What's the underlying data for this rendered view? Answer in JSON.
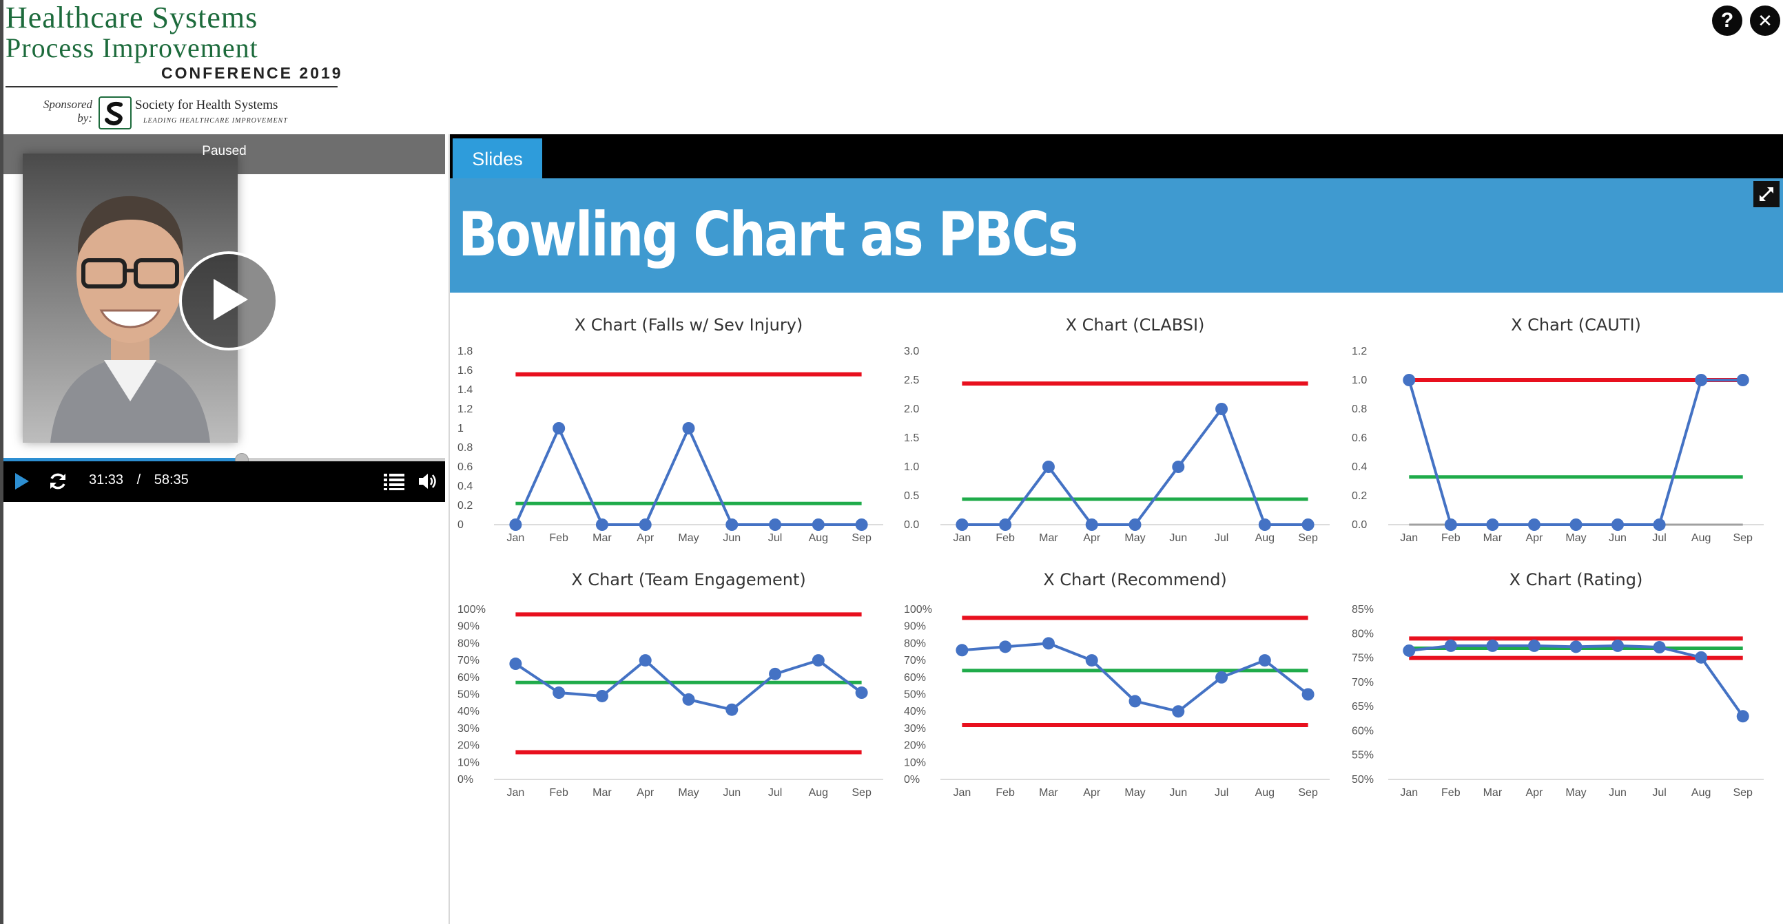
{
  "logo": {
    "line1": "Healthcare Systems",
    "line2": "Process Improvement",
    "line3": "CONFERENCE 2019",
    "sponsored": "Sponsored by:",
    "society": "Society for Health Systems",
    "tagline": "LEADING HEALTHCARE IMPROVEMENT"
  },
  "top_icons": {
    "help": "?",
    "close": "✕"
  },
  "video": {
    "status": "Paused",
    "current_time": "31:33",
    "separator": "/",
    "duration": "58:35",
    "progress_fraction": 0.539
  },
  "slides": {
    "tab_label": "Slides",
    "title": "Bowling Chart as PBCs"
  },
  "colors": {
    "series": "#4472c4",
    "limit": "#e8101e",
    "center": "#1fab4a",
    "banner": "#3f9ad0",
    "tab": "#2e9cdb"
  },
  "chart_data": [
    {
      "type": "line",
      "title": "X Chart (Falls w/ Sev Injury)",
      "x": [
        "Jan",
        "Feb",
        "Mar",
        "Apr",
        "May",
        "Jun",
        "Jul",
        "Aug",
        "Sep"
      ],
      "ylim": [
        0,
        1.8
      ],
      "yticks": [
        "0",
        "0.2",
        "0.4",
        "0.6",
        "0.8",
        "1",
        "1.2",
        "1.4",
        "1.6",
        "1.8"
      ],
      "values": [
        0,
        1,
        0,
        0,
        1,
        0,
        0,
        0,
        0
      ],
      "ucl": 1.56,
      "center": 0.22,
      "lcl": null
    },
    {
      "type": "line",
      "title": "X Chart (CLABSI)",
      "x": [
        "Jan",
        "Feb",
        "Mar",
        "Apr",
        "May",
        "Jun",
        "Jul",
        "Aug",
        "Sep"
      ],
      "ylim": [
        0,
        3
      ],
      "yticks": [
        "0.0",
        "0.5",
        "1.0",
        "1.5",
        "2.0",
        "2.5",
        "3.0"
      ],
      "values": [
        0,
        0,
        1,
        0,
        0,
        1,
        2,
        0,
        0
      ],
      "ucl": 2.44,
      "center": 0.44,
      "lcl": null
    },
    {
      "type": "line",
      "title": "X Chart (CAUTI)",
      "x": [
        "Jan",
        "Feb",
        "Mar",
        "Apr",
        "May",
        "Jun",
        "Jul",
        "Aug",
        "Sep"
      ],
      "ylim": [
        0,
        1.2
      ],
      "yticks": [
        "0.0",
        "0.2",
        "0.4",
        "0.6",
        "0.8",
        "1.0",
        "1.2"
      ],
      "values": [
        1,
        0,
        0,
        0,
        0,
        0,
        0,
        1,
        1
      ],
      "ucl": 1.0,
      "center": 0.33,
      "lcl": 0
    },
    {
      "type": "line",
      "title": "X Chart (Team Engagement)",
      "x": [
        "Jan",
        "Feb",
        "Mar",
        "Apr",
        "May",
        "Jun",
        "Jul",
        "Aug",
        "Sep"
      ],
      "ylim": [
        0,
        100
      ],
      "yticks": [
        "0%",
        "10%",
        "20%",
        "30%",
        "40%",
        "50%",
        "60%",
        "70%",
        "80%",
        "90%",
        "100%"
      ],
      "values": [
        68,
        51,
        49,
        70,
        47,
        41,
        62,
        70,
        51
      ],
      "ucl": 97,
      "center": 57,
      "lcl": 16
    },
    {
      "type": "line",
      "title": "X Chart (Recommend)",
      "x": [
        "Jan",
        "Feb",
        "Mar",
        "Apr",
        "May",
        "Jun",
        "Jul",
        "Aug",
        "Sep"
      ],
      "ylim": [
        0,
        100
      ],
      "yticks": [
        "0%",
        "10%",
        "20%",
        "30%",
        "40%",
        "50%",
        "60%",
        "70%",
        "80%",
        "90%",
        "100%"
      ],
      "values": [
        76,
        78,
        80,
        70,
        46,
        40,
        60,
        70,
        50
      ],
      "ucl": 95,
      "center": 64,
      "lcl": 32
    },
    {
      "type": "line",
      "title": "X Chart (Rating)",
      "x": [
        "Jan",
        "Feb",
        "Mar",
        "Apr",
        "May",
        "Jun",
        "Jul",
        "Aug",
        "Sep"
      ],
      "ylim": [
        50,
        85
      ],
      "yticks": [
        "50%",
        "55%",
        "60%",
        "65%",
        "70%",
        "75%",
        "80%",
        "85%"
      ],
      "values": [
        76.5,
        77.5,
        77.5,
        77.5,
        77.3,
        77.5,
        77.2,
        75.1,
        63
      ],
      "ucl": 79,
      "center": 77,
      "lcl": 75
    }
  ]
}
